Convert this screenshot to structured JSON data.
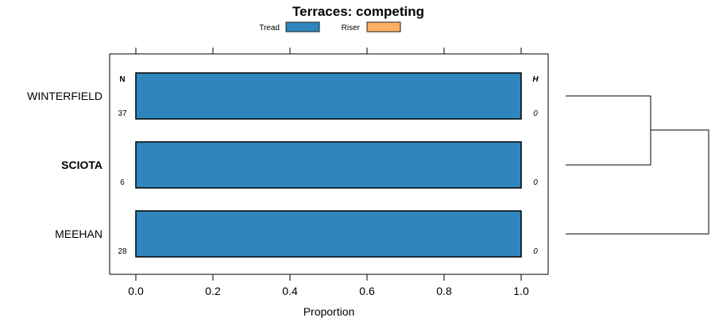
{
  "chart_data": {
    "type": "bar",
    "orientation": "horizontal",
    "stacked": true,
    "title": "Terraces: competing",
    "xlabel": "Proportion",
    "ylabel": "",
    "xlim": [
      0,
      1
    ],
    "xticks": [
      "0.0",
      "0.2",
      "0.4",
      "0.6",
      "0.8",
      "1.0"
    ],
    "xtick_values": [
      0,
      0.2,
      0.4,
      0.6,
      0.8,
      1.0
    ],
    "legend": {
      "placement": "top",
      "entries": [
        {
          "name": "Tread",
          "color": "#2e86bc"
        },
        {
          "name": "Riser",
          "color": "#fdb063"
        }
      ]
    },
    "categories": [
      "WINTERFIELD",
      "SCIOTA",
      "MEEHAN"
    ],
    "highlighted_category": "SCIOTA",
    "series": [
      {
        "name": "Tread",
        "values": [
          1.0,
          1.0,
          1.0
        ]
      },
      {
        "name": "Riser",
        "values": [
          0,
          0,
          0
        ]
      }
    ],
    "n_header": "N",
    "n_values": [
      "37",
      "6",
      "28"
    ],
    "h_header": "H",
    "h_values": [
      "0",
      "0",
      "0"
    ],
    "dendrogram": "WINTERFIELD and SCIOTA cluster first, then MEEHAN"
  }
}
